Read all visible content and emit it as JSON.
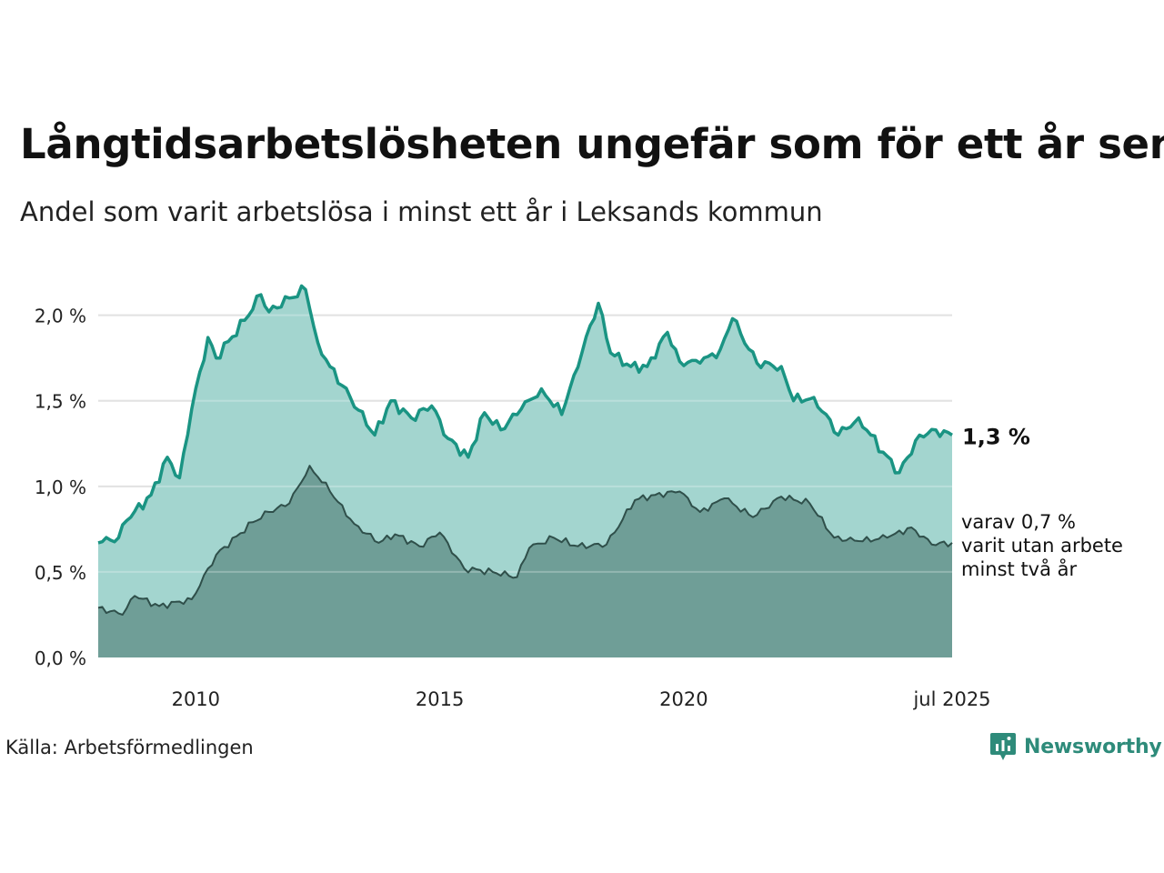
{
  "title": "Långtidsarbetslösheten ungefär som för ett år sen",
  "subtitle": "Andel som varit arbetslösa i minst ett år i Leksands kommun",
  "source": "Källa: Arbetsförmedlingen",
  "brand": "Newsworthy",
  "colors": {
    "series1_line": "#1a9483",
    "series1_fill": "#a3d5cf",
    "series2_line": "#2f4f4a",
    "series2_fill": "#6f9e97",
    "grid": "#d9d9d9",
    "brand": "#2e8b7a"
  },
  "chart_data": {
    "type": "area",
    "x_start": "2008-01",
    "x_end": "2025-07",
    "frequency": "monthly",
    "ylim": [
      0,
      2.2
    ],
    "yticks": [
      0,
      0.5,
      1.0,
      1.5,
      2.0
    ],
    "ytick_labels": [
      "0,0 %",
      "0,5 %",
      "1,0 %",
      "1,5 %",
      "2,0 %"
    ],
    "xticks": [
      "2010-01",
      "2015-01",
      "2020-01",
      "2025-07"
    ],
    "xtick_labels": [
      "2010",
      "2015",
      "2020",
      "jul 2025"
    ],
    "grid": true,
    "series": [
      {
        "keyframes": [
          [
            "2008-01",
            0.67
          ],
          [
            "2008-06",
            0.7
          ],
          [
            "2008-08",
            0.8
          ],
          [
            "2009-02",
            0.95
          ],
          [
            "2009-06",
            1.17
          ],
          [
            "2009-09",
            1.05
          ],
          [
            "2009-12",
            1.45
          ],
          [
            "2010-04",
            1.87
          ],
          [
            "2010-06",
            1.75
          ],
          [
            "2011-01",
            1.97
          ],
          [
            "2011-05",
            2.12
          ],
          [
            "2011-07",
            2.02
          ],
          [
            "2011-12",
            2.1
          ],
          [
            "2012-04",
            2.15
          ],
          [
            "2012-07",
            1.84
          ],
          [
            "2012-10",
            1.7
          ],
          [
            "2013-03",
            1.52
          ],
          [
            "2013-09",
            1.3
          ],
          [
            "2014-01",
            1.5
          ],
          [
            "2014-06",
            1.4
          ],
          [
            "2014-11",
            1.47
          ],
          [
            "2015-03",
            1.28
          ],
          [
            "2015-08",
            1.17
          ],
          [
            "2015-12",
            1.43
          ],
          [
            "2016-04",
            1.33
          ],
          [
            "2016-09",
            1.45
          ],
          [
            "2017-02",
            1.57
          ],
          [
            "2017-07",
            1.42
          ],
          [
            "2017-10",
            1.65
          ],
          [
            "2018-04",
            2.07
          ],
          [
            "2018-07",
            1.78
          ],
          [
            "2018-12",
            1.7
          ],
          [
            "2019-04",
            1.7
          ],
          [
            "2019-09",
            1.9
          ],
          [
            "2019-12",
            1.73
          ],
          [
            "2020-05",
            1.72
          ],
          [
            "2020-10",
            1.8
          ],
          [
            "2021-01",
            1.98
          ],
          [
            "2021-07",
            1.72
          ],
          [
            "2022-01",
            1.7
          ],
          [
            "2022-04",
            1.5
          ],
          [
            "2022-09",
            1.52
          ],
          [
            "2023-03",
            1.3
          ],
          [
            "2023-08",
            1.4
          ],
          [
            "2024-02",
            1.2
          ],
          [
            "2024-06",
            1.08
          ],
          [
            "2024-11",
            1.3
          ],
          [
            "2025-03",
            1.33
          ],
          [
            "2025-07",
            1.3
          ]
        ],
        "end_label": "1,3 %"
      },
      {
        "keyframes": [
          [
            "2008-01",
            0.29
          ],
          [
            "2008-07",
            0.25
          ],
          [
            "2008-10",
            0.36
          ],
          [
            "2009-04",
            0.3
          ],
          [
            "2009-12",
            0.34
          ],
          [
            "2010-06",
            0.6
          ],
          [
            "2011-03",
            0.79
          ],
          [
            "2011-07",
            0.85
          ],
          [
            "2011-12",
            0.9
          ],
          [
            "2012-05",
            1.12
          ],
          [
            "2012-10",
            0.97
          ],
          [
            "2013-04",
            0.78
          ],
          [
            "2013-10",
            0.67
          ],
          [
            "2014-02",
            0.72
          ],
          [
            "2014-08",
            0.65
          ],
          [
            "2015-01",
            0.73
          ],
          [
            "2015-07",
            0.52
          ],
          [
            "2016-02",
            0.5
          ],
          [
            "2016-08",
            0.47
          ],
          [
            "2016-11",
            0.64
          ],
          [
            "2017-05",
            0.7
          ],
          [
            "2017-11",
            0.65
          ],
          [
            "2018-06",
            0.66
          ],
          [
            "2019-01",
            0.92
          ],
          [
            "2019-06",
            0.95
          ],
          [
            "2019-12",
            0.97
          ],
          [
            "2020-05",
            0.85
          ],
          [
            "2020-11",
            0.93
          ],
          [
            "2021-06",
            0.82
          ],
          [
            "2022-01",
            0.94
          ],
          [
            "2022-08",
            0.9
          ],
          [
            "2023-02",
            0.7
          ],
          [
            "2023-08",
            0.68
          ],
          [
            "2024-03",
            0.7
          ],
          [
            "2024-09",
            0.76
          ],
          [
            "2025-02",
            0.66
          ],
          [
            "2025-07",
            0.67
          ]
        ],
        "end_label_lines": [
          "varav 0,7 %",
          "varit utan arbete",
          "minst två år"
        ]
      }
    ]
  }
}
